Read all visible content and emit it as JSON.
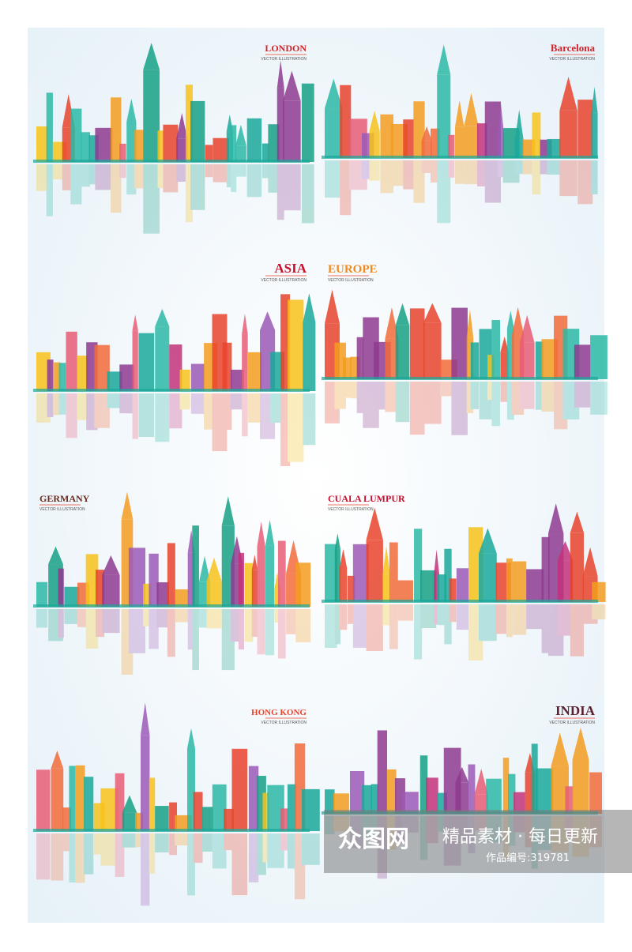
{
  "panels": [
    {
      "title": "LONDON",
      "subtitle": "VECTOR ILLUSTRATION"
    },
    {
      "title": "Barcelona",
      "subtitle": "VECTOR ILLUSTRATION"
    },
    {
      "title": "ASIA",
      "subtitle": "VECTOR ILLUSTRATION"
    },
    {
      "title": "EUROPE",
      "subtitle": "VECTOR ILLUSTRATION"
    },
    {
      "title": "GERMANY",
      "subtitle": "VECTOR ILLUSTRATION"
    },
    {
      "title": "CUALA LUMPUR",
      "subtitle": "VECTOR ILLUSTRATION"
    },
    {
      "title": "HONG KONG",
      "subtitle": "VECTOR ILLUSTRATION"
    },
    {
      "title": "INDIA",
      "subtitle": "VECTOR ILLUSTRATION"
    }
  ],
  "watermark": {
    "logo": "众图网",
    "slogan": "精品素材 · 每日更新",
    "id": "作品编号:319781"
  }
}
